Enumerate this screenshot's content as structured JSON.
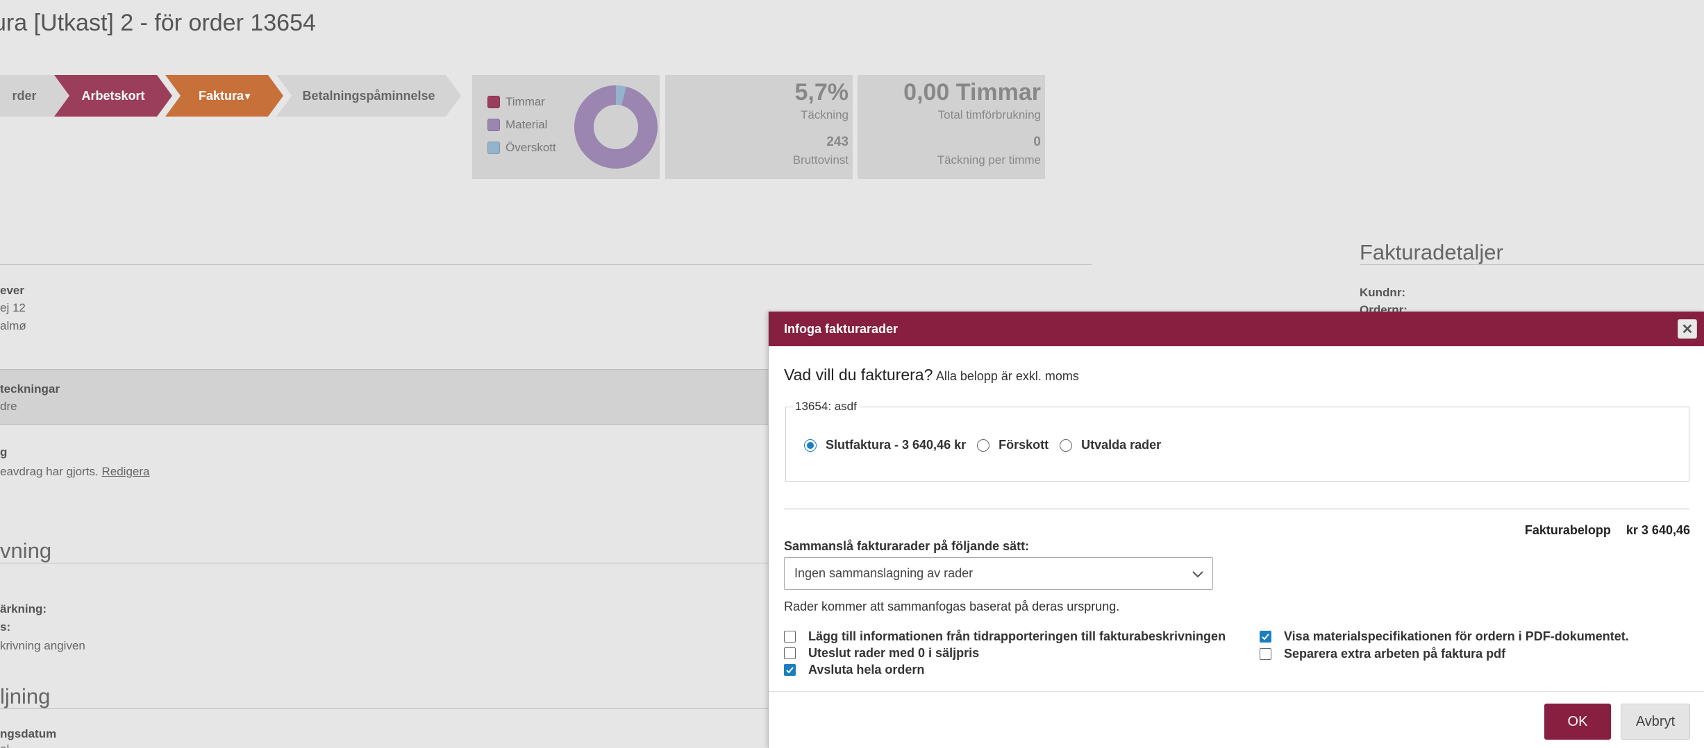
{
  "page": {
    "title": "ura [Utkast] 2 - för order 13654"
  },
  "steps": {
    "order": "rder",
    "arbetskort": "Arbetskort",
    "faktura": "Faktura",
    "faktura_caret": "▾",
    "betalning": "Betalningspåminnelse"
  },
  "legend": {
    "items": [
      {
        "label": "Timmar",
        "color": "#9b3e5c"
      },
      {
        "label": "Material",
        "color": "#9a86b1"
      },
      {
        "label": "Överskott",
        "color": "#94b4cc"
      }
    ]
  },
  "donut": {
    "material_share": 0.96,
    "overskott_share": 0.04
  },
  "kpi": {
    "tackning_value": "5,7%",
    "tackning_label": "Täckning",
    "brutto_value": "243",
    "brutto_label": "Bruttovinst",
    "timmar_value": "0,00 Timmar",
    "timmar_label": "Total timförbrukning",
    "per_timme_value": "0",
    "per_timme_label": "Täckning per timme"
  },
  "background": {
    "fakturadetaljer_title": "Fakturadetaljer",
    "kundnr_label": "Kundnr:",
    "ordernr_label": "Ordernr:",
    "lever_label": "ever",
    "address1": "ej 12",
    "address2": "almø",
    "anteckningar_label": "teckningar",
    "anteckningar_value": "dre",
    "g_label": "g",
    "avdrag_text": "eavdrag har gjorts.",
    "redigera": "Redigera",
    "beskrivning_heading": "vning",
    "markning_label": "ärkning:",
    "s_label": "s:",
    "ingen_beskrivning": "krivning angiven",
    "betalning_heading": "ljning",
    "datum_label": "ngsdatum",
    "datum_value": "ol"
  },
  "modal": {
    "title": "Infoga fakturarader",
    "close_symbol": "✕",
    "question": "Vad vill du fakturera?",
    "question_sub": "Alla belopp är exkl. moms",
    "order_legend": "13654: asdf",
    "radio_options": [
      {
        "label": "Slutfaktura - 3 640,46 kr",
        "checked": true
      },
      {
        "label": "Förskott",
        "checked": false
      },
      {
        "label": "Utvalda rader",
        "checked": false
      }
    ],
    "amount_label": "Fakturabelopp",
    "amount_value": "kr 3 640,46",
    "combine_label": "Sammanslå fakturarader på följande sätt:",
    "combine_selected": "Ingen sammanslagning av rader",
    "info_text": "Rader kommer att sammanfogas baserat på deras ursprung.",
    "checkboxes_left": [
      {
        "label": "Lägg till informationen från tidrapporteringen till fakturabeskrivningen",
        "checked": false
      },
      {
        "label": "Uteslut rader med 0 i säljpris",
        "checked": false
      },
      {
        "label": "Avsluta hela ordern",
        "checked": true
      }
    ],
    "checkboxes_right": [
      {
        "label": "Visa materialspecifikationen för ordern i PDF-dokumentet.",
        "checked": true
      },
      {
        "label": "Separera extra arbeten på faktura pdf",
        "checked": false
      }
    ],
    "ok_label": "OK",
    "cancel_label": "Avbryt"
  },
  "colors": {
    "brand": "#861f40",
    "step_arbetskort": "#9b3e5c",
    "step_faktura": "#c8703a",
    "step_inactive": "#d4d4d4",
    "checkbox_blue": "#1a7fc0"
  }
}
